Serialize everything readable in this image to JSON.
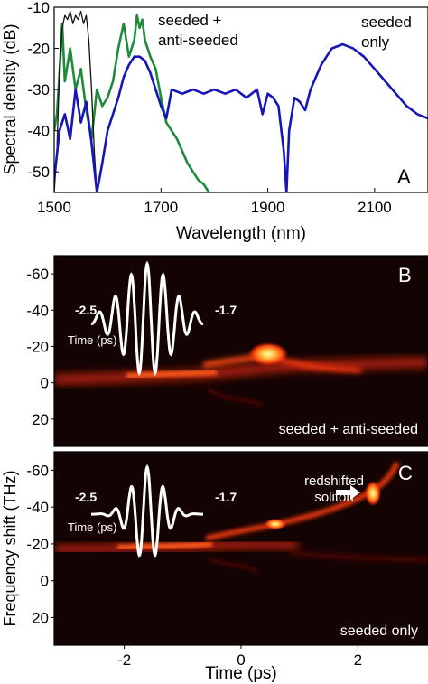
{
  "panel_a": {
    "panel_label": "A",
    "xlabel": "Wavelength (nm)",
    "ylabel": "Spectral density (dB)",
    "xticks": [
      "1500",
      "1700",
      "1900",
      "2100"
    ],
    "yticks": [
      "-10",
      "-20",
      "-30",
      "-40",
      "-50"
    ],
    "annotation_seeded_anti_1": "seeded +",
    "annotation_seeded_anti_2": "anti-seeded",
    "annotation_seeded_only_1": "seeded",
    "annotation_seeded_only_2": "only"
  },
  "panel_b": {
    "panel_label": "B",
    "caption": "seeded + anti-seeded",
    "pulse_left": "-2.5",
    "pulse_right": "-1.7",
    "pulse_time_label": "Time (ps)",
    "yticks": [
      "-60",
      "-40",
      "-20",
      "0",
      "20"
    ]
  },
  "panel_c": {
    "panel_label": "C",
    "caption": "seeded only",
    "pulse_left": "-2.5",
    "pulse_right": "-1.7",
    "pulse_time_label": "Time (ps)",
    "soliton_label_1": "redshifted",
    "soliton_label_2": "soliton",
    "yticks": [
      "-60",
      "-40",
      "-20",
      "0",
      "20"
    ],
    "xticks": [
      "-2",
      "0",
      "2"
    ]
  },
  "shared_ylabel_bc": "Frequency shift (THz)",
  "shared_xlabel_bc": "Time (ps)",
  "colors": {
    "blue_series": "#1515b8",
    "green_series": "#1f8a3a",
    "black_series": "#111111",
    "spectrogram_bg": "#140303",
    "spectrogram_hot": "#ff5a1a",
    "spectrogram_core": "#fff3a0"
  },
  "chart_data": [
    {
      "type": "line",
      "xlim": [
        1500,
        2200
      ],
      "ylim": [
        -55,
        -10
      ],
      "x_scale": "linear",
      "grid": false,
      "series": [
        {
          "color": "#1515b8",
          "x": [
            1500,
            1510,
            1520,
            1530,
            1540,
            1550,
            1560,
            1570,
            1580,
            1590,
            1600,
            1610,
            1620,
            1630,
            1640,
            1650,
            1660,
            1670,
            1680,
            1690,
            1700,
            1710,
            1720,
            1740,
            1760,
            1780,
            1800,
            1820,
            1840,
            1860,
            1880,
            1890,
            1900,
            1910,
            1920,
            1930,
            1935,
            1940,
            1950,
            1960,
            1970,
            1980,
            1990,
            2000,
            2020,
            2040,
            2060,
            2080,
            2100,
            2120,
            2140,
            2160,
            2180,
            2200
          ],
          "y": [
            -52,
            -40,
            -36,
            -42,
            -30,
            -38,
            -33,
            -43,
            -55,
            -48,
            -40,
            -36,
            -32,
            -27,
            -24,
            -22,
            -22,
            -23,
            -26,
            -30,
            -34,
            -37,
            -30,
            -31,
            -30,
            -31,
            -30,
            -31,
            -30,
            -32,
            -30,
            -36,
            -31,
            -32,
            -34,
            -45,
            -55,
            -40,
            -32,
            -33,
            -35,
            -30,
            -27,
            -24,
            -20,
            -19,
            -20,
            -22,
            -25,
            -28,
            -31,
            -34,
            -36,
            -37
          ]
        },
        {
          "color": "#1f8a3a",
          "x": [
            1500,
            1505,
            1510,
            1515,
            1520,
            1530,
            1540,
            1550,
            1560,
            1570,
            1580,
            1590,
            1600,
            1610,
            1620,
            1630,
            1640,
            1650,
            1655,
            1660,
            1665,
            1670,
            1680,
            1690,
            1700,
            1710,
            1720,
            1730,
            1740,
            1750,
            1760,
            1770,
            1780,
            1790,
            1800
          ],
          "y": [
            -40,
            -36,
            -26,
            -14,
            -28,
            -20,
            -30,
            -25,
            -35,
            -42,
            -30,
            -34,
            -32,
            -28,
            -20,
            -14,
            -22,
            -18,
            -12,
            -15,
            -13,
            -18,
            -22,
            -25,
            -32,
            -38,
            -40,
            -42,
            -45,
            -48,
            -50,
            -52,
            -53,
            -55,
            -56
          ]
        },
        {
          "color": "#111111",
          "x": [
            1500,
            1505,
            1510,
            1515,
            1520,
            1525,
            1530,
            1535,
            1540,
            1545,
            1550,
            1555,
            1560,
            1565,
            1570,
            1575,
            1580
          ],
          "y": [
            -55,
            -45,
            -25,
            -15,
            -12,
            -13,
            -11,
            -14,
            -12,
            -13,
            -11,
            -14,
            -12,
            -18,
            -30,
            -45,
            -55
          ]
        }
      ]
    },
    {
      "type": "heatmap",
      "xlim": [
        -3.2,
        3.2
      ],
      "ylim": [
        -70,
        35
      ],
      "y_reversed": true,
      "y_ticks": [
        -60,
        -40,
        -20,
        0,
        20
      ]
    },
    {
      "type": "heatmap",
      "xlim": [
        -3.2,
        3.2
      ],
      "ylim": [
        -70,
        35
      ],
      "y_reversed": true,
      "x_ticks": [
        -2,
        0,
        2
      ],
      "y_ticks": [
        -60,
        -40,
        -20,
        0,
        20
      ]
    }
  ]
}
